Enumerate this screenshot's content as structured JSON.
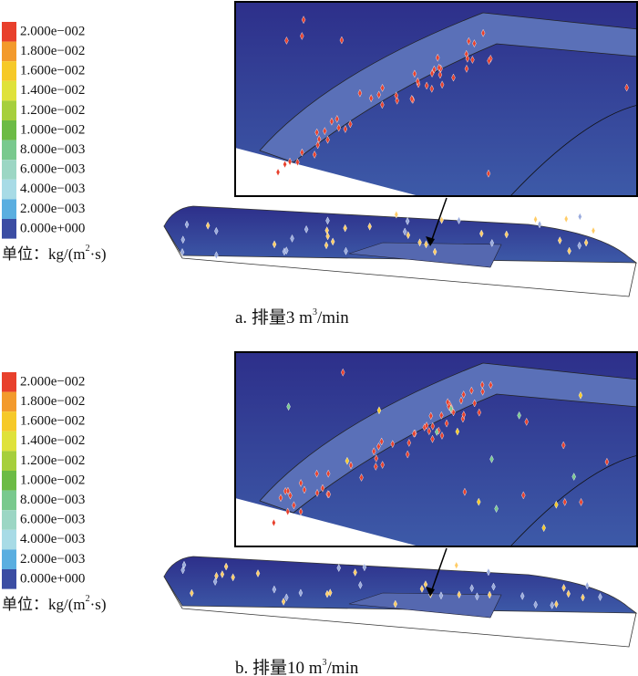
{
  "panels": [
    {
      "legend_labels": [
        "2.000e−002",
        "1.800e−002",
        "1.600e−002",
        "1.400e−002",
        "1.200e−002",
        "1.000e−002",
        "8.000e−003",
        "6.000e−003",
        "4.000e−003",
        "2.000e−003",
        "0.000e+000"
      ],
      "unit": {
        "prefix": "单位：kg/(m",
        "sup": "2",
        "suffix": "·s)"
      },
      "caption": {
        "prefix": "a. 排量3 m",
        "sup": "3",
        "suffix": "/min"
      }
    },
    {
      "legend_labels": [
        "2.000e−002",
        "1.800e−002",
        "1.600e−002",
        "1.400e−002",
        "1.200e−002",
        "1.000e−002",
        "8.000e−003",
        "6.000e−003",
        "4.000e−003",
        "2.000e−003",
        "0.000e+000"
      ],
      "unit": {
        "prefix": "单位：kg/(m",
        "sup": "2",
        "suffix": "·s)"
      },
      "caption": {
        "prefix": "b. 排量10 m",
        "sup": "3",
        "suffix": "/min"
      }
    }
  ]
}
